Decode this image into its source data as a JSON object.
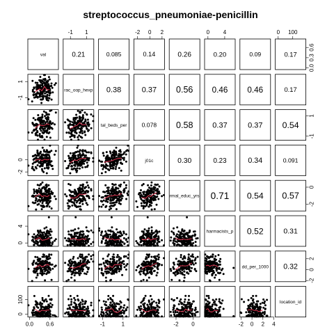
{
  "chart_data": {
    "type": "scatter-matrix",
    "title": "streptococcus_pneumoniae-penicillin",
    "variables": [
      "val",
      "rac_oop_hexp",
      "tal_beds_per",
      "j01c",
      "rmal_educ_yrs",
      "harmacists_p",
      "dd_per_1000",
      "location_id"
    ],
    "correlations": [
      [
        null,
        "0.21",
        "0.085",
        "0.14",
        "0.26",
        "0.20",
        "0.09",
        "0.17"
      ],
      [
        null,
        null,
        "0.38",
        "0.37",
        "0.56",
        "0.46",
        "0.46",
        "0.17"
      ],
      [
        null,
        null,
        null,
        "0.078",
        "0.58",
        "0.37",
        "0.37",
        "0.54"
      ],
      [
        null,
        null,
        null,
        null,
        "0.30",
        "0.23",
        "0.34",
        "0.091"
      ],
      [
        null,
        null,
        null,
        null,
        null,
        "0.71",
        "0.54",
        "0.57"
      ],
      [
        null,
        null,
        null,
        null,
        null,
        null,
        "0.52",
        "0.31"
      ],
      [
        null,
        null,
        null,
        null,
        null,
        null,
        null,
        "0.32"
      ],
      [
        null,
        null,
        null,
        null,
        null,
        null,
        null,
        null
      ]
    ],
    "ranges": [
      [
        -0.05,
        0.85
      ],
      [
        -1.9,
        1.9
      ],
      [
        -1.4,
        1.6
      ],
      [
        -2.6,
        2.4
      ],
      [
        -2.8,
        0.8
      ],
      [
        -0.8,
        6.5
      ],
      [
        -2.2,
        3.4
      ],
      [
        -20,
        190
      ]
    ],
    "axes": {
      "top": [
        {
          "col": 1,
          "ticks": [
            -1,
            1
          ],
          "labels": [
            "-1",
            "1"
          ]
        },
        {
          "col": 3,
          "ticks": [
            -2,
            0,
            2
          ],
          "labels": [
            "-2",
            "0",
            "2"
          ]
        },
        {
          "col": 5,
          "ticks": [
            0,
            4
          ],
          "labels": [
            "0",
            "4"
          ]
        },
        {
          "col": 7,
          "ticks": [
            0,
            100
          ],
          "labels": [
            "0",
            "100"
          ]
        }
      ],
      "bottom": [
        {
          "col": 0,
          "ticks": [
            0.0,
            0.6
          ],
          "labels": [
            "0.0",
            "0.6"
          ]
        },
        {
          "col": 2,
          "ticks": [
            -1,
            1
          ],
          "labels": [
            "-1",
            "1"
          ]
        },
        {
          "col": 4,
          "ticks": [
            -2,
            0
          ],
          "labels": [
            "-2",
            "0"
          ]
        },
        {
          "col": 6,
          "ticks": [
            -2,
            0,
            2,
            4
          ],
          "labels": [
            "-2",
            "0",
            "2",
            "4"
          ]
        }
      ],
      "left": [
        {
          "row": 1,
          "ticks": [
            -1,
            1
          ],
          "labels": [
            "-1",
            "1"
          ]
        },
        {
          "row": 3,
          "ticks": [
            -2,
            0
          ],
          "labels": [
            "-2",
            "0"
          ]
        },
        {
          "row": 5,
          "ticks": [
            0,
            4
          ],
          "labels": [
            "0",
            "4"
          ]
        },
        {
          "row": 7,
          "ticks": [
            0,
            100
          ],
          "labels": [
            "0",
            "100"
          ]
        }
      ],
      "right": [
        {
          "row": 0,
          "ticks": [
            0.0,
            0.3,
            0.6
          ],
          "labels": [
            "0.0",
            "0.3",
            "0.6"
          ]
        },
        {
          "row": 2,
          "ticks": [
            -1,
            1
          ],
          "labels": [
            "-1",
            "1"
          ]
        },
        {
          "row": 4,
          "ticks": [
            -2,
            0
          ],
          "labels": [
            "-2",
            "0"
          ]
        },
        {
          "row": 6,
          "ticks": [
            -2,
            0,
            2
          ],
          "labels": [
            "-2",
            "0",
            "2"
          ]
        }
      ]
    },
    "colors": {
      "points": "#000000",
      "smooth": "#e0334f",
      "frame": "#000000"
    }
  }
}
